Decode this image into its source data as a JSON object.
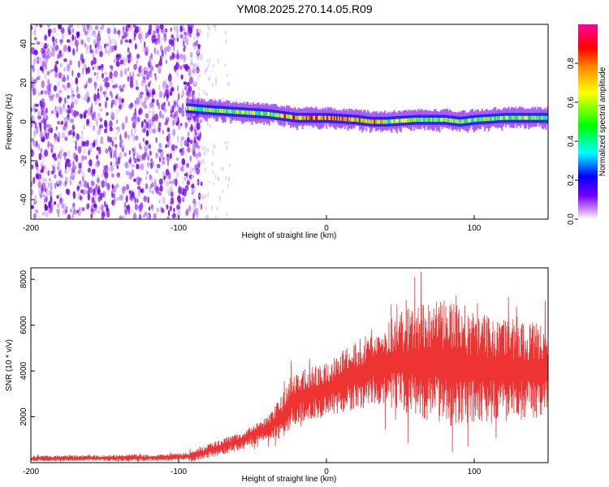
{
  "title": "YM08.2025.270.14.05.R09",
  "chart_data": [
    {
      "type": "heatmap",
      "name": "spectrogram",
      "xlabel": "Height of straight line (km)",
      "ylabel": "Frequency (Hz)",
      "xlim": [
        -200,
        150
      ],
      "ylim": [
        -50,
        50
      ],
      "xticks": [
        "-200",
        "-100",
        "0",
        "100"
      ],
      "yticks": [
        "40",
        "20",
        "0",
        "-20",
        "-40"
      ],
      "noise_region_x": [
        -200,
        -90
      ],
      "signal_start_x": -95,
      "signal_band_hz": 5,
      "signal_center_hz": [
        [
          -95,
          7
        ],
        [
          -80,
          6
        ],
        [
          -60,
          5
        ],
        [
          -40,
          4
        ],
        [
          -20,
          2
        ],
        [
          0,
          2
        ],
        [
          20,
          1
        ],
        [
          30,
          0
        ],
        [
          40,
          0
        ],
        [
          60,
          1
        ],
        [
          80,
          1
        ],
        [
          90,
          0
        ],
        [
          100,
          1
        ],
        [
          120,
          2
        ],
        [
          150,
          2
        ]
      ],
      "colorbar": {
        "label": "Normalized spectral amplitude",
        "range": [
          0.0,
          1.0
        ],
        "ticks": [
          "0.0",
          "0.2",
          "0.4",
          "0.6",
          "0.8"
        ],
        "colors": [
          "#ffffff",
          "#cc88ff",
          "#7700ff",
          "#0000ff",
          "#00ffff",
          "#00ff00",
          "#ffff00",
          "#ff8800",
          "#ff0000",
          "#ff0099"
        ]
      }
    },
    {
      "type": "line",
      "name": "snr",
      "xlabel": "Height of straight line (km)",
      "ylabel": "SNR (10 * v/v)",
      "xlim": [
        -200,
        150
      ],
      "ylim": [
        0,
        8500
      ],
      "xticks": [
        "-200",
        "-100",
        "0",
        "100"
      ],
      "yticks": [
        "8000",
        "6000",
        "4000",
        "2000"
      ],
      "color": "#ee3333",
      "envelope": [
        [
          -200,
          180
        ],
        [
          -150,
          200
        ],
        [
          -110,
          220
        ],
        [
          -90,
          300
        ],
        [
          -80,
          500
        ],
        [
          -60,
          900
        ],
        [
          -40,
          1500
        ],
        [
          -30,
          2000
        ],
        [
          -25,
          2600
        ],
        [
          -20,
          2800
        ],
        [
          -10,
          3000
        ],
        [
          0,
          3200
        ],
        [
          10,
          3500
        ],
        [
          20,
          3800
        ],
        [
          30,
          4100
        ],
        [
          40,
          4300
        ],
        [
          50,
          4400
        ],
        [
          60,
          4400
        ],
        [
          70,
          4400
        ],
        [
          80,
          4300
        ],
        [
          90,
          4200
        ],
        [
          100,
          4100
        ],
        [
          120,
          4050
        ],
        [
          150,
          4000
        ]
      ],
      "spread": [
        [
          -200,
          120
        ],
        [
          -100,
          150
        ],
        [
          -80,
          300
        ],
        [
          -40,
          500
        ],
        [
          -25,
          1200
        ],
        [
          0,
          1200
        ],
        [
          20,
          1500
        ],
        [
          40,
          1800
        ],
        [
          50,
          2200
        ],
        [
          80,
          2800
        ],
        [
          100,
          2500
        ],
        [
          150,
          2000
        ]
      ]
    }
  ]
}
